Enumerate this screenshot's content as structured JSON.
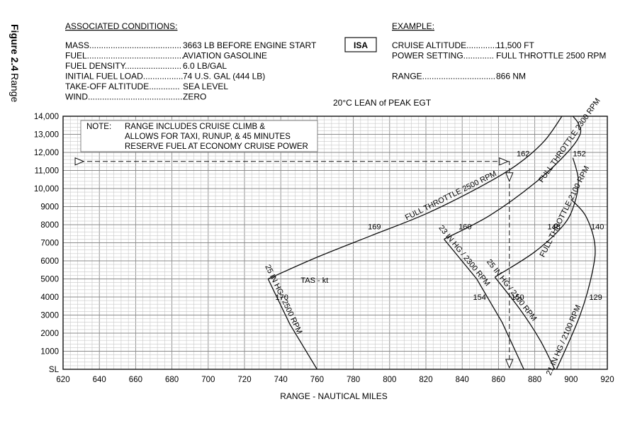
{
  "figure": {
    "number": "Figure 2.4",
    "title": "Range"
  },
  "conditions": {
    "heading": "ASSOCIATED CONDITIONS:",
    "rows": [
      {
        "label": "MASS.......................................",
        "value": "3663 LB BEFORE ENGINE START"
      },
      {
        "label": "FUEL.........................................",
        "value": "AVIATION GASOLINE"
      },
      {
        "label": "FUEL DENSITY........................",
        "value": "6.0 LB/GAL"
      },
      {
        "label": "INITIAL FUEL LOAD.................",
        "value": "74 U.S. GAL (444 LB)"
      },
      {
        "label": "TAKE-OFF ALTITUDE.............",
        "value": "SEA LEVEL"
      },
      {
        "label": "WIND........................................",
        "value": "ZERO"
      }
    ]
  },
  "isa_box": "ISA",
  "example": {
    "heading": "EXAMPLE:",
    "rows": [
      {
        "label": "CRUISE ALTITUDE.............",
        "value": "11,500 FT"
      },
      {
        "label": "POWER SETTING.............",
        "value": "FULL THROTTLE  2500 RPM"
      },
      {
        "label": "",
        "value": ""
      },
      {
        "label": "RANGE...............................",
        "value": "866 NM"
      }
    ]
  },
  "temp_note": "20°C  LEAN of PEAK EGT",
  "note_box": {
    "lead": "NOTE:",
    "lines": [
      "RANGE INCLUDES CRUISE CLIMB &",
      "ALLOWS FOR TAXI, RUNUP, & 45 MINUTES",
      "RESERVE FUEL AT ECONOMY CRUISE POWER"
    ]
  },
  "chart_data": {
    "type": "line",
    "xlabel": "RANGE - NAUTICAL MILES",
    "ylabel": "",
    "xlim": [
      620,
      920
    ],
    "ylim": [
      0,
      14000
    ],
    "x_ticks": [
      620,
      640,
      660,
      680,
      700,
      720,
      740,
      760,
      780,
      800,
      820,
      840,
      860,
      880,
      900,
      920
    ],
    "x_tick_labels": [
      "620",
      "640",
      "660",
      "680",
      "700",
      "720",
      "740",
      "760",
      "780",
      "800",
      "820",
      "840",
      "860",
      "880",
      "900",
      "920"
    ],
    "y_ticks": [
      0,
      1000,
      2000,
      3000,
      4000,
      5000,
      6000,
      7000,
      8000,
      9000,
      10000,
      11000,
      12000,
      13000,
      14000
    ],
    "y_tick_labels": [
      "SL",
      "1000",
      "2000",
      "3000",
      "4000",
      "5000",
      "6000",
      "7000",
      "8000",
      "9000",
      "10,000",
      "11,000",
      "12,000",
      "13,000",
      "14,000"
    ],
    "grid": true,
    "series": [
      {
        "name": "25 IN HG / 2500 RPM",
        "x": [
          733,
          745,
          760
        ],
        "y": [
          5000,
          2500,
          0
        ]
      },
      {
        "name": "FULL THROTTLE 2500 RPM",
        "x": [
          733,
          760,
          790,
          820,
          850,
          870,
          885,
          895
        ],
        "y": [
          5000,
          6200,
          7400,
          8600,
          10100,
          11300,
          12600,
          14000
        ]
      },
      {
        "name": "23 IN HG / 2300 RPM",
        "x": [
          830,
          848,
          862,
          874
        ],
        "y": [
          7200,
          5000,
          2600,
          0
        ]
      },
      {
        "name": "FULL THROTTLE 2300 RPM",
        "x": [
          830,
          855,
          880,
          898,
          905,
          904,
          901
        ],
        "y": [
          7200,
          8500,
          10300,
          12000,
          13000,
          13600,
          14000
        ]
      },
      {
        "name": "25 IN HG / 2100 RPM",
        "x": [
          858,
          872,
          883,
          891
        ],
        "y": [
          5100,
          3300,
          1600,
          0
        ]
      },
      {
        "name": "FULL THROTTLE 2100 RPM",
        "x": [
          858,
          880,
          896,
          902,
          904,
          901
        ],
        "y": [
          5100,
          6500,
          8000,
          9200,
          10500,
          11700
        ]
      },
      {
        "name": "21 IN HG / 2100 RPM",
        "x": [
          892,
          905,
          912,
          913,
          908,
          900
        ],
        "y": [
          0,
          3000,
          5500,
          7000,
          8500,
          9400
        ]
      },
      {
        "name": "EXAMPLE",
        "x": [
          629,
          866,
          866
        ],
        "y": [
          11500,
          11500,
          0
        ]
      }
    ],
    "annotations": [
      {
        "text": "TAS - kt",
        "x": 751,
        "y": 4950
      },
      {
        "text": "170",
        "x": 737,
        "y": 4000
      },
      {
        "text": "169",
        "x": 788,
        "y": 7900
      },
      {
        "text": "162",
        "x": 870,
        "y": 11950
      },
      {
        "text": "152",
        "x": 901,
        "y": 11950
      },
      {
        "text": "160",
        "x": 838,
        "y": 7900
      },
      {
        "text": "148",
        "x": 887,
        "y": 7900
      },
      {
        "text": "140",
        "x": 911,
        "y": 7900
      },
      {
        "text": "154",
        "x": 846,
        "y": 4000
      },
      {
        "text": "150",
        "x": 867,
        "y": 4000
      },
      {
        "text": "129",
        "x": 910,
        "y": 4000
      }
    ]
  }
}
